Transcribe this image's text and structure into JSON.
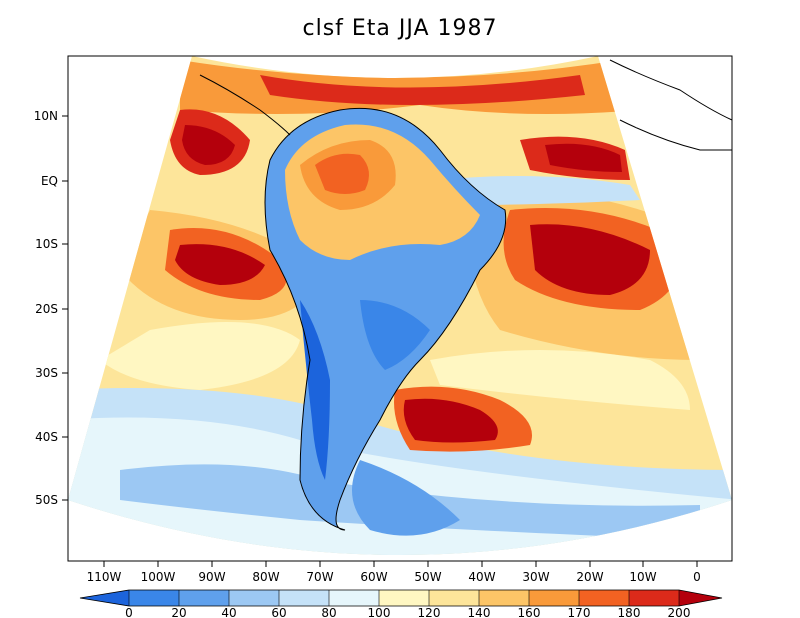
{
  "title": "clsf Eta JJA 1987",
  "map": {
    "lat_labels": [
      "10N",
      "EQ",
      "10S",
      "20S",
      "30S",
      "40S",
      "50S"
    ],
    "lon_labels": [
      "110W",
      "100W",
      "90W",
      "80W",
      "70W",
      "60W",
      "50W",
      "40W",
      "30W",
      "20W",
      "10W",
      "0"
    ]
  },
  "colorbar": {
    "ticks": [
      "0",
      "20",
      "40",
      "60",
      "80",
      "100",
      "120",
      "140",
      "160",
      "170",
      "180",
      "200"
    ],
    "colors": [
      "#1c64dc",
      "#3a86e8",
      "#5fa0ec",
      "#9cc8f3",
      "#c5e2f8",
      "#e6f6fb",
      "#fff7c2",
      "#fde59a",
      "#fcc567",
      "#f99a3a",
      "#f26222",
      "#dc2a1a",
      "#b4000c"
    ]
  }
}
